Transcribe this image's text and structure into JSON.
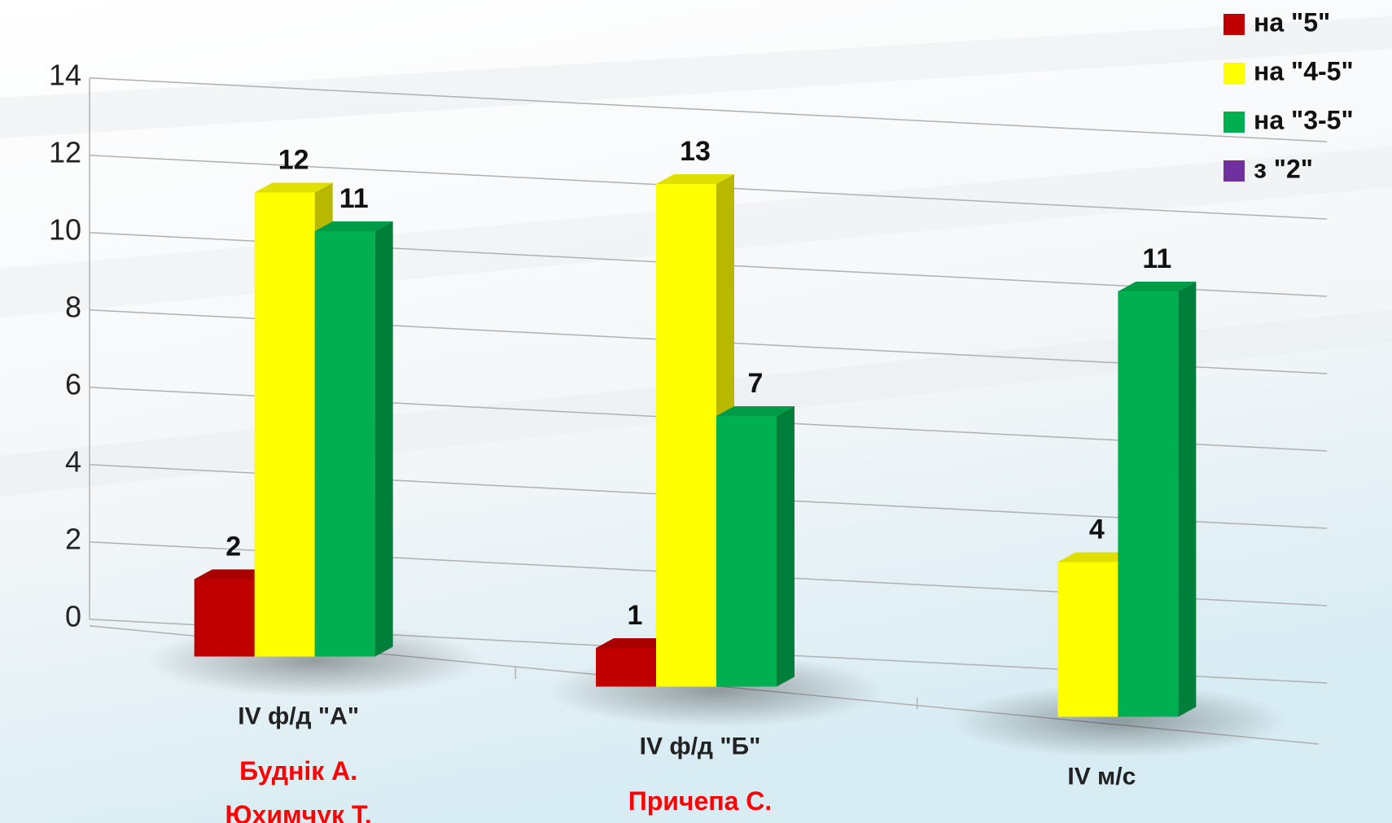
{
  "chart_data": {
    "type": "bar3d",
    "categories": [
      "IV ф/д \"А\"",
      "IV ф/д \"Б\"",
      "IV м/с"
    ],
    "annotations": [
      [
        "Буднік А.",
        "Юхимчук Т."
      ],
      [
        "Причепа С."
      ]
    ],
    "series": [
      {
        "name": "на \"5\"",
        "color": "#c00000",
        "values": [
          2,
          1,
          null
        ]
      },
      {
        "name": "на \"4-5\"",
        "color": "#ffff00",
        "values": [
          12,
          13,
          4
        ]
      },
      {
        "name": "на \"3-5\"",
        "color": "#00b050",
        "values": [
          11,
          7,
          11
        ]
      },
      {
        "name": "з \"2\"",
        "color": "#7030a0",
        "values": [
          null,
          null,
          null
        ]
      }
    ],
    "ylim": [
      0,
      14
    ],
    "yticks": [
      0,
      2,
      4,
      6,
      8,
      10,
      12,
      14
    ],
    "grid": true,
    "legend": "top-right"
  }
}
